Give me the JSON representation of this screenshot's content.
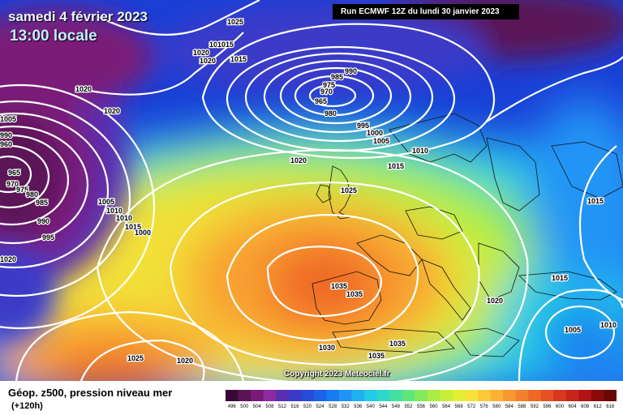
{
  "header": {
    "date": "samedi 4 février 2023",
    "time": "13:00 locale",
    "run": "Run ECMWF 12Z du lundi 30 janvier 2023"
  },
  "copyright": "Copyright 2023 Meteociel.fr",
  "footer": {
    "title": "Géop. z500, pression niveau mer",
    "subtitle": "(+120h)"
  },
  "legend": {
    "units_note": "",
    "values": [
      "496",
      "500",
      "504",
      "508",
      "512",
      "516",
      "520",
      "524",
      "528",
      "532",
      "536",
      "540",
      "544",
      "548",
      "552",
      "556",
      "560",
      "564",
      "568",
      "572",
      "576",
      "580",
      "584",
      "588",
      "592",
      "596",
      "600",
      "604",
      "608",
      "612",
      "616"
    ],
    "colors": [
      "#3a0838",
      "#5a1456",
      "#7a1a78",
      "#8c2aa0",
      "#5a2eb0",
      "#3a3ac8",
      "#2a4ad8",
      "#1a62e6",
      "#1a7af0",
      "#2094f5",
      "#1eb2f0",
      "#22cce6",
      "#2ed8c8",
      "#44e0a0",
      "#5ee67c",
      "#84ea5a",
      "#a8ec44",
      "#c8ee3a",
      "#e4ee36",
      "#f6e23a",
      "#fcca38",
      "#fcb034",
      "#f99830",
      "#f5802c",
      "#ef6828",
      "#e65024",
      "#d8381e",
      "#c8241a",
      "#b01414",
      "#8c0a0a",
      "#6a0606"
    ]
  },
  "map": {
    "colors": {
      "low": "#5a1456",
      "deep_blue": "#1a3fd6",
      "mid_blue": "#2a8ef0",
      "cyan": "#22cce6",
      "green": "#84ea5a",
      "yellow": "#f2e038",
      "orange": "#f9a030",
      "red_orange": "#ef6828"
    },
    "pressure_labels": [
      "1025",
      "1015",
      "1015",
      "1020",
      "1020",
      "1015",
      "1020",
      "1020",
      "990",
      "985",
      "975",
      "970",
      "965",
      "980",
      "995",
      "1000",
      "1005",
      "1010",
      "1015",
      "1020",
      "1025",
      "1005",
      "990",
      "960",
      "965",
      "970",
      "975",
      "980",
      "985",
      "990",
      "995",
      "1005",
      "1010",
      "1010",
      "1015",
      "1000",
      "1020",
      "1035",
      "1035",
      "1015",
      "1020",
      "1005",
      "1015",
      "1010",
      "1030",
      "1035",
      "1035",
      "1025",
      "1020"
    ],
    "coastlines_visible": true
  }
}
